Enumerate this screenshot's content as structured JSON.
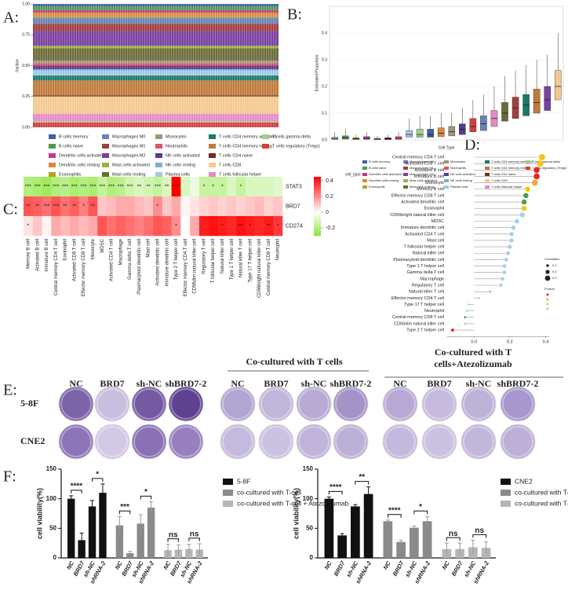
{
  "chart_data": [
    {
      "type": "stacked_bar",
      "label": "A:",
      "ylabel": "fraction",
      "ylim": [
        0,
        1
      ],
      "yticks": [
        {
          "value": 0,
          "label": "0.00"
        },
        {
          "value": 0.25,
          "label": "0.25"
        },
        {
          "value": 0.5,
          "label": "0.50"
        },
        {
          "value": 0.75,
          "label": "0.75"
        },
        {
          "value": 1,
          "label": "1.00"
        }
      ],
      "series": [
        {
          "name": "B cells memory",
          "color": "#3f5fa8",
          "values": [
            0.02
          ]
        },
        {
          "name": "B cells naive",
          "color": "#4a9a4a",
          "values": [
            0.03
          ]
        },
        {
          "name": "Dendritic cells activated",
          "color": "#c0398a",
          "values": [
            0.02
          ]
        },
        {
          "name": "Dendritic cells resting",
          "color": "#d98a3a",
          "values": [
            0.03
          ]
        },
        {
          "name": "Eosinophils",
          "color": "#b8a020",
          "values": [
            0.01
          ]
        },
        {
          "name": "Macrophages M0",
          "color": "#6a82b8",
          "values": [
            0.05
          ]
        },
        {
          "name": "Macrophages M1",
          "color": "#a04040",
          "values": [
            0.06
          ]
        },
        {
          "name": "Macrophages M2",
          "color": "#7a40a0",
          "values": [
            0.12
          ]
        },
        {
          "name": "Mast cells activated",
          "color": "#a0b040",
          "values": [
            0.02
          ]
        },
        {
          "name": "Mast cells resting",
          "color": "#6b6b3a",
          "values": [
            0.1
          ]
        },
        {
          "name": "Monocytes",
          "color": "#9a9a7a",
          "values": [
            0.02
          ]
        },
        {
          "name": "Neutrophils",
          "color": "#e0506a",
          "values": [
            0.02
          ]
        },
        {
          "name": "NK cells activated",
          "color": "#5a3a8a",
          "values": [
            0.03
          ]
        },
        {
          "name": "NK cells resting",
          "color": "#7ab0d0",
          "values": [
            0.01
          ]
        },
        {
          "name": "Plasma cells",
          "color": "#a0c8e8",
          "values": [
            0.04
          ]
        },
        {
          "name": "T cells CD4 memory activated",
          "color": "#1a7a6a",
          "values": [
            0.04
          ]
        },
        {
          "name": "T cells CD4 memory resting",
          "color": "#c07a3a",
          "values": [
            0.12
          ]
        },
        {
          "name": "T cells CD4 naive",
          "color": "#6a3020",
          "values": [
            0.01
          ]
        },
        {
          "name": "T cells CD8",
          "color": "#f4c890",
          "values": [
            0.14
          ]
        },
        {
          "name": "T cells follicular helper",
          "color": "#e68ac8",
          "values": [
            0.06
          ]
        },
        {
          "name": "T cells gamma delta",
          "color": "#9ad08a",
          "values": [
            0.01
          ]
        },
        {
          "name": "T cells regulatory (Tregs)",
          "color": "#d04040",
          "values": [
            0.04
          ]
        }
      ]
    },
    {
      "type": "box",
      "label": "B:",
      "ylabel": "Estimated Proportion",
      "xlabel": "Cell Type",
      "legend_title": "cell_type",
      "ylim": [
        0,
        0.5
      ],
      "yticks": [
        {
          "value": 0,
          "label": "0.0"
        },
        0.1,
        0.2,
        0.3,
        0.4
      ],
      "names": [
        "NK cells resting",
        "B cells naive",
        "Eosinophils",
        "Dendritic cells activated",
        "Mast cells activated",
        "T cells CD4 naive",
        "Neutrophils",
        "Plasma cells",
        "T cells gamma delta",
        "B cells memory",
        "Dendritic cells resting",
        "Monocytes",
        "NK cells activated",
        "T cells regulatory (Tregs)",
        "Macrophages M0",
        "T cells follicular helper",
        "Mast cells resting",
        "Macrophages M1",
        "T cells CD4 memory activated",
        "T cells CD4 memory resting",
        "Macrophages M2",
        "T cells CD8"
      ],
      "q1": [
        0.002,
        0.003,
        0.001,
        0.002,
        0.001,
        0.001,
        0.002,
        0.01,
        0.01,
        0.01,
        0.012,
        0.015,
        0.02,
        0.03,
        0.035,
        0.05,
        0.07,
        0.08,
        0.09,
        0.1,
        0.11,
        0.15
      ],
      "median": [
        0.005,
        0.008,
        0.004,
        0.006,
        0.003,
        0.004,
        0.006,
        0.02,
        0.02,
        0.02,
        0.025,
        0.03,
        0.04,
        0.05,
        0.06,
        0.08,
        0.1,
        0.12,
        0.13,
        0.14,
        0.15,
        0.2
      ],
      "q3": [
        0.01,
        0.015,
        0.008,
        0.012,
        0.006,
        0.008,
        0.012,
        0.035,
        0.04,
        0.04,
        0.045,
        0.05,
        0.06,
        0.08,
        0.09,
        0.11,
        0.14,
        0.16,
        0.17,
        0.19,
        0.2,
        0.26
      ],
      "whisker_high": [
        0.03,
        0.04,
        0.02,
        0.03,
        0.015,
        0.02,
        0.03,
        0.08,
        0.09,
        0.09,
        0.1,
        0.1,
        0.12,
        0.15,
        0.17,
        0.2,
        0.24,
        0.26,
        0.28,
        0.3,
        0.32,
        0.4
      ]
    },
    {
      "type": "heatmap",
      "label": "C:",
      "rows": [
        "STAT3",
        "BRD7",
        "CD274"
      ],
      "columns": [
        "Memory B cell",
        "Activated B cell",
        "Immature  B cell",
        "Central memory CD4 T cell",
        "Eosinophil",
        "Activated CD8 T cell",
        "Effector memory CD8 T cell",
        "Monocyte",
        "MDSC",
        "Activated CD4 T cell",
        "Macrophage",
        "Gamma delta T cell",
        "Plasmacytoid dendritic cell",
        "Mast cell",
        "Activated dendritic cell",
        "Immature dendritic cell",
        "Type 2 T helper cell",
        "Effector memory CD4 T cell",
        "CD56dim natural killer cell",
        "Regulatory T cell",
        "T follicular helper cell",
        "Natural killer cell",
        "Type 1 T helper cell",
        "Natural killer T cell",
        "Type 17 T helper cell",
        "CD56bright natural killer cell",
        "Central memory CD8 T cell",
        "Neutrophil"
      ],
      "values": [
        [
          -0.2,
          -0.22,
          -0.25,
          -0.2,
          -0.18,
          -0.22,
          -0.2,
          -0.22,
          -0.15,
          -0.2,
          -0.18,
          -0.12,
          -0.1,
          -0.12,
          -0.15,
          -0.1,
          0.45,
          -0.1,
          -0.05,
          -0.15,
          -0.15,
          -0.15,
          -0.1,
          -0.15,
          -0.1,
          -0.1,
          -0.1,
          -0.08
        ],
        [
          0.3,
          0.28,
          0.25,
          0.3,
          0.25,
          0.28,
          0.22,
          0.3,
          0.1,
          0.12,
          0.15,
          0.15,
          0.12,
          0.1,
          0.2,
          0.1,
          0.15,
          0.02,
          0.05,
          0.08,
          0.1,
          0.08,
          0.1,
          0.08,
          0.1,
          0.12,
          0.08,
          0.1
        ],
        [
          0.05,
          0.1,
          0.02,
          0.15,
          0.12,
          0.15,
          0.12,
          0.15,
          0.3,
          0.25,
          0.28,
          0.25,
          0.22,
          0.25,
          0.3,
          0.28,
          0.2,
          0,
          0.15,
          0.4,
          0.42,
          0.4,
          0.38,
          0.42,
          0.4,
          0.38,
          0.4,
          0.35
        ]
      ],
      "stars": [
        [
          "***",
          "***",
          "***",
          "***",
          "***",
          "***",
          "***",
          "***",
          "***",
          "***",
          "***",
          "***",
          "**",
          "**",
          "***",
          "**",
          "***",
          null,
          null,
          "*",
          "*",
          "*",
          null,
          "*",
          null,
          null,
          null,
          null
        ],
        [
          "**",
          "**",
          "***",
          "***",
          "**",
          "**",
          "*",
          "**",
          null,
          null,
          null,
          null,
          null,
          null,
          "*",
          null,
          null,
          null,
          null,
          null,
          null,
          null,
          null,
          null,
          null,
          null,
          null,
          null
        ],
        [
          "*",
          null,
          null,
          null,
          null,
          null,
          null,
          null,
          null,
          null,
          null,
          null,
          null,
          null,
          null,
          null,
          "*",
          null,
          null,
          null,
          null,
          "*",
          null,
          "**",
          "*",
          null,
          "**",
          "*"
        ]
      ],
      "clim": [
        -0.3,
        0.45
      ],
      "colorbar_ticks": [
        0.4,
        0.2,
        0,
        -0.2
      ]
    },
    {
      "type": "dot",
      "label": "D:",
      "categories": [
        "Central memory CD4 T cell",
        "Activated CD8 T cell",
        "Activated B cell",
        "Immature  B cell",
        "Monocyte",
        "Memory B cell",
        "Effector memory CD8 T cell",
        "Activated dendritic cell",
        "Eosinophil",
        "CD56bright natural killer cell",
        "MDSC",
        "Immature dendritic cell",
        "Activated CD4 T cell",
        "Mast cell",
        "T follicular helper cell",
        "Natural killer cell",
        "Plasmacytoid dendritic cell",
        "Type 1 T helper cell",
        "Gamma delta T cell",
        "Macrophage",
        "Regulatory T cell",
        "Natural killer T cell",
        "Effector memory CD4 T cell",
        "Type 17 T helper cell",
        "Neutrophil",
        "Central memory CD8 T cell",
        "CD56dim natural killer cell",
        "Type 2 T helper cell"
      ],
      "values": [
        0.38,
        0.37,
        0.35,
        0.35,
        0.34,
        0.3,
        0.29,
        0.28,
        0.28,
        0.27,
        0.24,
        0.22,
        0.21,
        0.21,
        0.2,
        0.19,
        0.18,
        0.17,
        0.17,
        0.16,
        0.15,
        0.09,
        0.03,
        -0.03,
        -0.04,
        -0.05,
        -0.05,
        -0.12
      ],
      "colors": [
        "#f5c518",
        "#f5c518",
        "#e8261f",
        "#e8261f",
        "#f5a623",
        "#f5c518",
        "#4aa04a",
        "#4aa04a",
        "#f5c518",
        "#a8d0e0",
        "#a8d0e0",
        "#a8d0e0",
        "#a8d0e0",
        "#a8d0e0",
        "#a8d0e0",
        "#a8d0e0",
        "#a8d0e0",
        "#a8d0e0",
        "#a8d0e0",
        "#a8d0e0",
        "#a8d0e0",
        "#a8d0e0",
        "#a8d0e0",
        "#a8d0e0",
        "#a8d0e0",
        "#4aa04a",
        "#a8d0e0",
        "#e8261f"
      ],
      "xlim": [
        -0.15,
        0.42
      ],
      "xticks": [
        {
          "value": 0,
          "label": "0.0"
        },
        0.2,
        0.4
      ],
      "size_legend_title": "Correlation",
      "size_legend": [
        0.1,
        0.2,
        0.3
      ],
      "color_legend_title": "P.value"
    },
    {
      "type": "bar",
      "label": "F:",
      "ylabel": "cell viability(%)",
      "ylim": [
        0,
        150
      ],
      "yticks": [
        0,
        50,
        100,
        150
      ],
      "categories": [
        "NC",
        "BRD7",
        "sh-NC",
        "shRNA-2",
        "NC",
        "BRD7",
        "sh-NC",
        "shRNA-2",
        "NC",
        "BRD7",
        "sh-NC",
        "shRNA-2"
      ],
      "series": [
        {
          "name": "5-8F",
          "color": "#111111",
          "values": [
            100,
            30,
            87,
            110,
            null,
            null,
            null,
            null,
            null,
            null,
            null,
            null
          ],
          "errors": [
            5,
            12,
            10,
            15,
            null,
            null,
            null,
            null,
            null,
            null,
            null,
            null
          ]
        },
        {
          "name": "co-cultured with T-cell",
          "color": "#8a8a8a",
          "values": [
            null,
            null,
            null,
            null,
            55,
            8,
            58,
            85,
            null,
            null,
            null,
            null
          ],
          "errors": [
            null,
            null,
            null,
            null,
            15,
            3,
            15,
            10,
            null,
            null,
            null,
            null
          ]
        },
        {
          "name": "co-cultured with T-cell + Atezolizumab",
          "color": "#b5b5b5",
          "values": [
            null,
            null,
            null,
            null,
            null,
            null,
            null,
            null,
            13,
            14,
            15,
            14
          ],
          "errors": [
            null,
            null,
            null,
            null,
            null,
            null,
            null,
            null,
            10,
            8,
            8,
            10
          ]
        }
      ],
      "significance": [
        "****",
        "*",
        "***",
        "*",
        "ns",
        "ns"
      ]
    },
    {
      "type": "bar",
      "ylabel": "cell viability(%)",
      "ylim": [
        0,
        150
      ],
      "yticks": [
        0,
        50,
        100,
        150
      ],
      "categories": [
        "NC",
        "BRD7",
        "sh-NC",
        "shRNA-2",
        "NC",
        "BRD7",
        "sh-NC",
        "shRNA-2",
        "NC",
        "BRD7",
        "sh-NC",
        "shRNA-2"
      ],
      "series": [
        {
          "name": "CNE2",
          "color": "#111111",
          "values": [
            100,
            38,
            87,
            108,
            null,
            null,
            null,
            null,
            null,
            null,
            null,
            null
          ],
          "errors": [
            3,
            3,
            3,
            12,
            null,
            null,
            null,
            null,
            null,
            null,
            null,
            null
          ]
        },
        {
          "name": "co-cultured with T-cell",
          "color": "#8a8a8a",
          "values": [
            null,
            null,
            null,
            null,
            62,
            27,
            51,
            62,
            null,
            null,
            null,
            null
          ],
          "errors": [
            null,
            null,
            null,
            null,
            2,
            3,
            3,
            8,
            null,
            null,
            null,
            null
          ]
        },
        {
          "name": "co-cultured with T-cell + Atezolizumab",
          "color": "#b5b5b5",
          "values": [
            null,
            null,
            null,
            null,
            null,
            null,
            null,
            null,
            15,
            15,
            18,
            17
          ],
          "errors": [
            null,
            null,
            null,
            null,
            null,
            null,
            null,
            null,
            10,
            10,
            12,
            10
          ]
        }
      ],
      "significance": [
        "****",
        "**",
        "****",
        "*",
        "ns",
        "ns"
      ]
    }
  ],
  "E": {
    "label": "E:",
    "columns": [
      "NC",
      "BRD7",
      "sh-NC",
      "shBRD7-2"
    ],
    "rows": [
      "5-8F",
      "CNE2"
    ],
    "group_titles": [
      [
        "Co-cultured with T cells"
      ],
      [
        "Co-cultured with T",
        "cells+Atezolizumab"
      ]
    ]
  }
}
